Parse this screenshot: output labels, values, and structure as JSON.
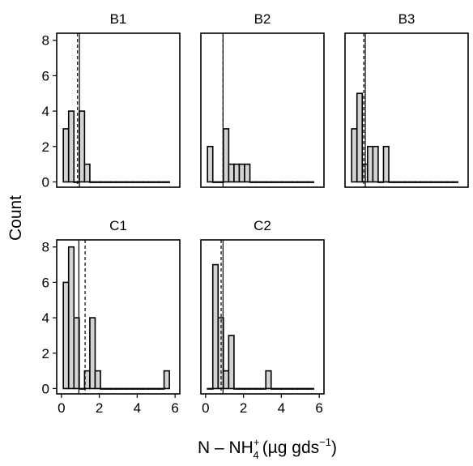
{
  "chart_data": {
    "type": "bar",
    "xlabel": "N – NH",
    "xlabel_sup": "+",
    "xlabel_sub": "4",
    "xlabel_units": "(µg gds",
    "xlabel_units_sup": "−1",
    "xlabel_units_close": ")",
    "ylabel": "Count",
    "xlim": [
      -0.25,
      6.25
    ],
    "ylim": [
      -0.3,
      8.4
    ],
    "x_ticks": [
      0,
      2,
      4,
      6
    ],
    "y_ticks": [
      0,
      2,
      4,
      6,
      8
    ],
    "bin_width": 0.28,
    "bin_start": 0.1,
    "bin_count": 20,
    "line_styles": {
      "mean": "solid",
      "median": "dashed"
    },
    "panels": [
      {
        "title": "B1",
        "counts": [
          3,
          4,
          0,
          4,
          1,
          0,
          0,
          0,
          0,
          0,
          0,
          0,
          0,
          0,
          0,
          0,
          0,
          0,
          0,
          0
        ],
        "mean": 0.95,
        "median": 0.85
      },
      {
        "title": "B2",
        "counts": [
          2,
          0,
          0,
          3,
          1,
          1,
          1,
          1,
          0,
          0,
          0,
          0,
          0,
          0,
          0,
          0,
          0,
          0,
          0,
          0
        ],
        "mean": 0.92,
        "median": 0.92
      },
      {
        "title": "B3",
        "counts": [
          3,
          5,
          1,
          2,
          2,
          0,
          2,
          0,
          0,
          0,
          0,
          0,
          0,
          0,
          0,
          0,
          0,
          0,
          0,
          0
        ],
        "mean": 0.82,
        "median": 0.74
      },
      {
        "title": "C1",
        "counts": [
          6,
          8,
          4,
          0,
          1,
          4,
          1,
          0,
          0,
          0,
          0,
          0,
          0,
          0,
          0,
          0,
          0,
          0,
          0,
          1
        ],
        "mean": 0.92,
        "median": 1.25
      },
      {
        "title": "C2",
        "counts": [
          0,
          7,
          4,
          1,
          3,
          0,
          0,
          0,
          0,
          0,
          0,
          1,
          0,
          0,
          0,
          0,
          0,
          0,
          0,
          0
        ],
        "mean": 0.92,
        "median": 0.82
      }
    ]
  }
}
